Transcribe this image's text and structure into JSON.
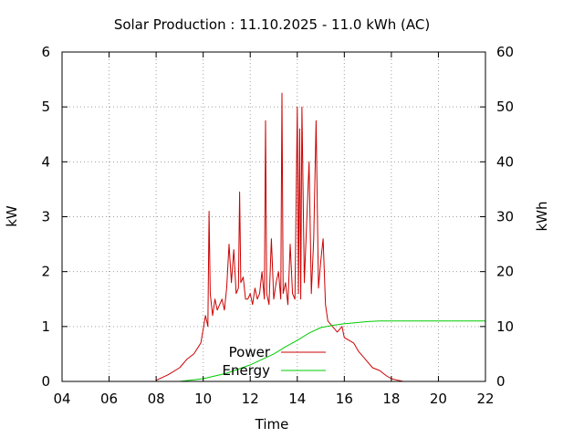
{
  "chart_data": {
    "type": "line",
    "title": "Solar Production : 11.10.2025 - 11.0 kWh (AC)",
    "xlabel": "Time",
    "ylabel": "kW",
    "y2label": "kWh",
    "xlim": [
      4,
      22
    ],
    "ylim": [
      0,
      6
    ],
    "y2lim": [
      0,
      60
    ],
    "x_ticks": [
      "04",
      "06",
      "08",
      "10",
      "12",
      "14",
      "16",
      "18",
      "20",
      "22"
    ],
    "y_ticks": [
      "0",
      "1",
      "2",
      "3",
      "4",
      "5",
      "6"
    ],
    "y2_ticks": [
      "0",
      "10",
      "20",
      "30",
      "40",
      "50",
      "60"
    ],
    "grid": true,
    "legend_position": "bottom-center",
    "series": [
      {
        "name": "Power",
        "axis": "y",
        "color": "#cc0000",
        "x": [
          8.0,
          8.5,
          9.0,
          9.3,
          9.6,
          9.9,
          10.1,
          10.2,
          10.25,
          10.3,
          10.4,
          10.5,
          10.6,
          10.7,
          10.8,
          10.9,
          11.0,
          11.1,
          11.2,
          11.3,
          11.4,
          11.5,
          11.55,
          11.6,
          11.7,
          11.8,
          11.9,
          12.0,
          12.1,
          12.2,
          12.3,
          12.4,
          12.5,
          12.6,
          12.65,
          12.7,
          12.8,
          12.9,
          13.0,
          13.1,
          13.2,
          13.3,
          13.35,
          13.4,
          13.5,
          13.6,
          13.7,
          13.8,
          13.9,
          14.0,
          14.05,
          14.1,
          14.15,
          14.2,
          14.3,
          14.4,
          14.5,
          14.6,
          14.7,
          14.8,
          14.9,
          15.0,
          15.1,
          15.2,
          15.3,
          15.5,
          15.7,
          15.9,
          16.0,
          16.2,
          16.4,
          16.6,
          16.8,
          17.0,
          17.2,
          17.5,
          17.8,
          18.0,
          18.3,
          18.5
        ],
        "values": [
          0.02,
          0.12,
          0.25,
          0.4,
          0.5,
          0.7,
          1.2,
          1.0,
          3.1,
          1.6,
          1.2,
          1.5,
          1.3,
          1.4,
          1.5,
          1.3,
          1.7,
          2.5,
          1.8,
          2.4,
          1.6,
          1.7,
          3.45,
          1.8,
          1.9,
          1.5,
          1.5,
          1.6,
          1.4,
          1.7,
          1.5,
          1.6,
          2.0,
          1.5,
          4.75,
          1.6,
          1.4,
          2.6,
          1.5,
          1.8,
          2.0,
          1.5,
          5.25,
          1.6,
          1.8,
          1.4,
          2.5,
          1.6,
          1.5,
          5.0,
          1.6,
          4.6,
          1.5,
          5.0,
          1.8,
          2.9,
          4.0,
          1.6,
          2.6,
          4.75,
          1.7,
          2.2,
          2.6,
          1.4,
          1.1,
          1.0,
          0.9,
          1.0,
          0.8,
          0.75,
          0.7,
          0.55,
          0.45,
          0.35,
          0.25,
          0.2,
          0.1,
          0.05,
          0.02,
          0.0
        ]
      },
      {
        "name": "Energy",
        "axis": "y2",
        "color": "#00cc00",
        "x": [
          9.0,
          10.0,
          11.0,
          12.0,
          13.0,
          13.5,
          14.0,
          14.5,
          15.0,
          15.5,
          16.0,
          16.5,
          17.0,
          17.5,
          18.0,
          22.0
        ],
        "values": [
          0.0,
          0.5,
          1.5,
          3.0,
          5.0,
          6.3,
          7.5,
          8.8,
          9.8,
          10.2,
          10.5,
          10.7,
          10.9,
          11.0,
          11.0,
          11.0
        ]
      }
    ]
  }
}
